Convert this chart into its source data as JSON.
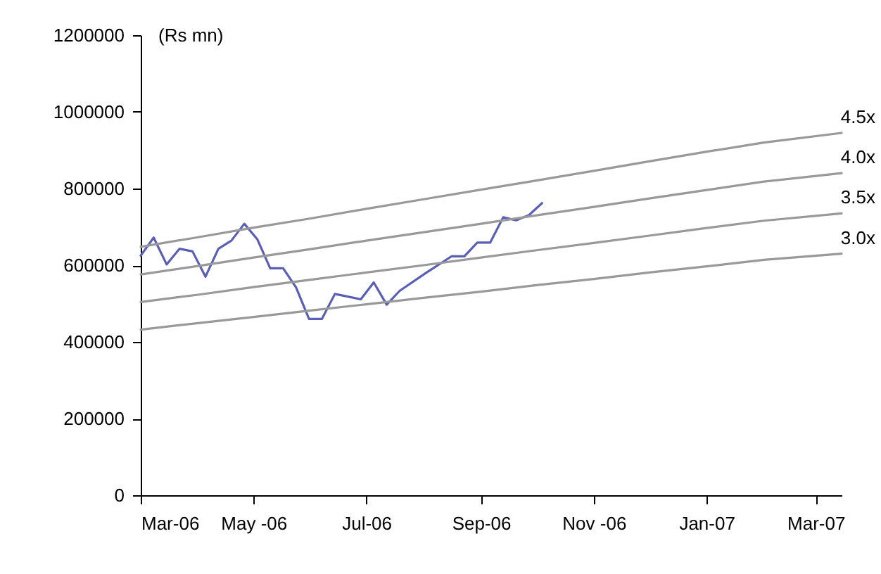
{
  "chart_data": {
    "type": "line",
    "ylabel": "(Rs mn)",
    "xlim": [
      "2006-03-01",
      "2007-03-15"
    ],
    "xticks": [
      {
        "value": "2006-03-01",
        "label": "Mar-06"
      },
      {
        "value": "2006-05-01",
        "label": "May -06"
      },
      {
        "value": "2006-07-01",
        "label": "Jul-06"
      },
      {
        "value": "2006-09-01",
        "label": "Sep-06"
      },
      {
        "value": "2006-11-01",
        "label": "Nov -06"
      },
      {
        "value": "2007-01-01",
        "label": "Jan-07"
      },
      {
        "value": "2007-03-01",
        "label": "Mar-07"
      }
    ],
    "ylim": [
      0,
      1200000
    ],
    "yticks": [
      0,
      200000,
      400000,
      600000,
      800000,
      1000000,
      1200000
    ],
    "grid": false,
    "marker": "none",
    "line_style": "solid",
    "series": [
      {
        "color": "#5a5fb5",
        "x": [
          "2006-03-01",
          "2006-03-08",
          "2006-03-15",
          "2006-03-22",
          "2006-03-29",
          "2006-04-05",
          "2006-04-12",
          "2006-04-19",
          "2006-04-26",
          "2006-05-03",
          "2006-05-10",
          "2006-05-17",
          "2006-05-24",
          "2006-05-31",
          "2006-06-07",
          "2006-06-14",
          "2006-06-28",
          "2006-07-05",
          "2006-07-12",
          "2006-07-19",
          "2006-08-02",
          "2006-08-16",
          "2006-08-23",
          "2006-08-30",
          "2006-09-06",
          "2006-09-13",
          "2006-09-20",
          "2006-09-27",
          "2006-10-04"
        ],
        "values": [
          625000,
          672000,
          602000,
          643000,
          636000,
          570000,
          643000,
          664000,
          708000,
          668000,
          592000,
          592000,
          542000,
          460000,
          460000,
          525000,
          511000,
          555000,
          497000,
          533000,
          579000,
          623000,
          623000,
          659000,
          659000,
          725000,
          717000,
          731000,
          762000
        ]
      },
      {
        "name": "4.5x",
        "color": "#999999",
        "x": [
          "2006-03-01",
          "2006-04-01",
          "2006-05-01",
          "2006-06-01",
          "2006-07-01",
          "2006-08-01",
          "2006-09-01",
          "2006-10-01",
          "2006-11-01",
          "2006-12-01",
          "2007-01-01",
          "2007-02-01",
          "2007-03-15"
        ],
        "values": [
          648000,
          673000,
          698000,
          722000,
          747000,
          772000,
          797000,
          821000,
          846000,
          871000,
          896000,
          920000,
          945000
        ]
      },
      {
        "name": "4.0x",
        "color": "#999999",
        "x": [
          "2006-03-01",
          "2006-04-01",
          "2006-05-01",
          "2006-06-01",
          "2006-07-01",
          "2006-08-01",
          "2006-09-01",
          "2006-10-01",
          "2006-11-01",
          "2006-12-01",
          "2007-01-01",
          "2007-02-01",
          "2007-03-15"
        ],
        "values": [
          576000,
          598000,
          620000,
          642000,
          664000,
          686000,
          708000,
          730000,
          752000,
          774000,
          796000,
          818000,
          840000
        ]
      },
      {
        "name": "3.5x",
        "color": "#999999",
        "x": [
          "2006-03-01",
          "2006-04-01",
          "2006-05-01",
          "2006-06-01",
          "2006-07-01",
          "2006-08-01",
          "2006-09-01",
          "2006-10-01",
          "2006-11-01",
          "2006-12-01",
          "2007-01-01",
          "2007-02-01",
          "2007-03-15"
        ],
        "values": [
          504000,
          523000,
          543000,
          562000,
          581000,
          600000,
          620000,
          639000,
          658000,
          677000,
          697000,
          716000,
          735000
        ]
      },
      {
        "name": "3.0x",
        "color": "#999999",
        "x": [
          "2006-03-01",
          "2006-04-01",
          "2006-05-01",
          "2006-06-01",
          "2006-07-01",
          "2006-08-01",
          "2006-09-01",
          "2006-10-01",
          "2006-11-01",
          "2006-12-01",
          "2007-01-01",
          "2007-02-01",
          "2007-03-15"
        ],
        "values": [
          432000,
          449000,
          465000,
          482000,
          498000,
          515000,
          531000,
          548000,
          564000,
          581000,
          597000,
          614000,
          630000
        ]
      }
    ]
  }
}
